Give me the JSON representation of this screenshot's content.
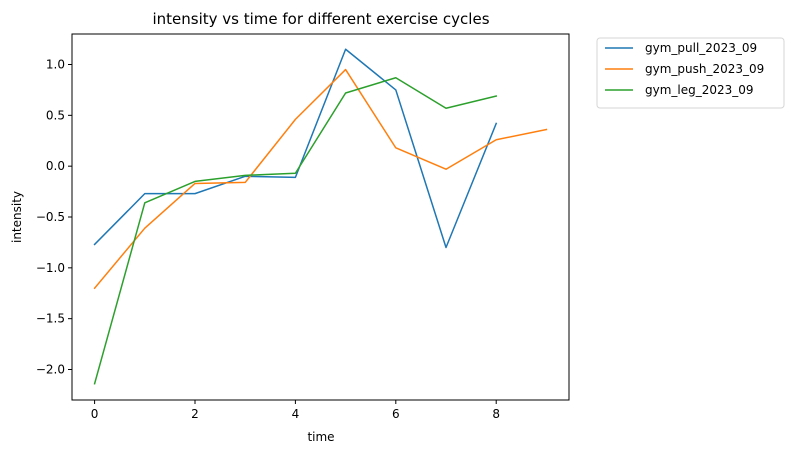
{
  "chart_data": {
    "type": "line",
    "title": "intensity vs time for different exercise cycles",
    "xlabel": "time",
    "ylabel": "intensity",
    "xlim": [
      -0.45,
      9.45
    ],
    "ylim": [
      -2.3,
      1.3
    ],
    "xticks": [
      0,
      2,
      4,
      6,
      8
    ],
    "xtick_labels": [
      "0",
      "2",
      "4",
      "6",
      "8"
    ],
    "yticks": [
      -2.0,
      -1.5,
      -1.0,
      -0.5,
      0.0,
      0.5,
      1.0
    ],
    "ytick_labels": [
      "−2.0",
      "−1.5",
      "−1.0",
      "−0.5",
      "0.0",
      "0.5",
      "1.0"
    ],
    "grid": false,
    "legend_position": "outside-top-right",
    "series": [
      {
        "name": "gym_pull_2023_09",
        "color": "#1f77b4",
        "x": [
          0,
          1,
          2,
          3,
          4,
          5,
          6,
          7,
          8
        ],
        "y": [
          -0.77,
          -0.27,
          -0.27,
          -0.1,
          -0.11,
          1.15,
          0.75,
          -0.8,
          0.42
        ]
      },
      {
        "name": "gym_push_2023_09",
        "color": "#ff7f0e",
        "x": [
          0,
          1,
          2,
          3,
          4,
          5,
          6,
          7,
          8,
          9
        ],
        "y": [
          -1.2,
          -0.61,
          -0.17,
          -0.16,
          0.46,
          0.95,
          0.18,
          -0.03,
          0.26,
          0.36
        ]
      },
      {
        "name": "gym_leg_2023_09",
        "color": "#2ca02c",
        "x": [
          0,
          1,
          2,
          3,
          4,
          5,
          6,
          7,
          8
        ],
        "y": [
          -2.14,
          -0.36,
          -0.15,
          -0.09,
          -0.07,
          0.72,
          0.87,
          0.57,
          0.69
        ]
      }
    ]
  }
}
